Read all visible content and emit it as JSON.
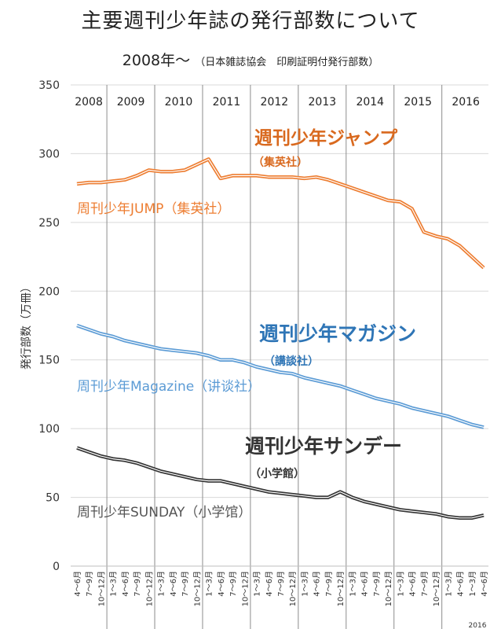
{
  "title": "主要週刊少年誌の発行部数について",
  "subtitle_main": "2008年～",
  "subtitle_note": "（日本雑誌協会　印刷証明付発行部数）",
  "colors": {
    "jump": "#ed7d31",
    "magazine": "#5b9bd5",
    "sunday": "#333333",
    "jump_label": "#d9691e",
    "magazine_label": "#2e75b6",
    "sunday_label": "#333333"
  },
  "chart_data": {
    "type": "line",
    "title": "主要週刊少年誌の発行部数について",
    "xlabel": "",
    "ylabel": "発行部数（万冊）",
    "ylim": [
      0,
      350
    ],
    "yticks": [
      0,
      50,
      100,
      150,
      200,
      250,
      300,
      350
    ],
    "grid": true,
    "years": [
      "2008",
      "2009",
      "2010",
      "2011",
      "2012",
      "2013",
      "2014",
      "2015",
      "2016"
    ],
    "year_tick_labels": [
      "4～6月",
      "7～9月",
      "10～12月",
      "1～3月"
    ],
    "last_tick_labels": [
      "1～3月",
      "4～6月"
    ],
    "last_year_label": "2016",
    "series": [
      {
        "name": "周刊少年JUMP（集英社）",
        "key": "jump",
        "label_main": "週刊少年ジャンプ",
        "label_sub": "（集英社）",
        "values": [
          278,
          279,
          279,
          280,
          281,
          284,
          288,
          287,
          287,
          288,
          292,
          296,
          282,
          284,
          284,
          284,
          283,
          283,
          283,
          282,
          283,
          281,
          278,
          275,
          272,
          269,
          266,
          265,
          260,
          243,
          240,
          238,
          233,
          225,
          217
        ]
      },
      {
        "name": "周刊少年Magazine（讲谈社）",
        "key": "magazine",
        "label_main": "週刊少年マガジン",
        "label_sub": "（講談社）",
        "values": [
          175,
          172,
          169,
          167,
          164,
          162,
          160,
          158,
          157,
          156,
          155,
          153,
          150,
          150,
          148,
          145,
          143,
          141,
          140,
          137,
          135,
          133,
          131,
          128,
          125,
          122,
          120,
          118,
          115,
          113,
          111,
          109,
          106,
          103,
          101
        ]
      },
      {
        "name": "周刊少年SUNDAY（小学馆）",
        "key": "sunday",
        "label_main": "週刊少年サンデー",
        "label_sub": "（小学館）",
        "values": [
          86,
          83,
          80,
          78,
          77,
          75,
          72,
          69,
          67,
          65,
          63,
          62,
          62,
          60,
          58,
          56,
          54,
          53,
          52,
          51,
          50,
          50,
          54,
          50,
          47,
          45,
          43,
          41,
          40,
          39,
          38,
          36,
          35,
          35,
          37
        ]
      }
    ]
  }
}
